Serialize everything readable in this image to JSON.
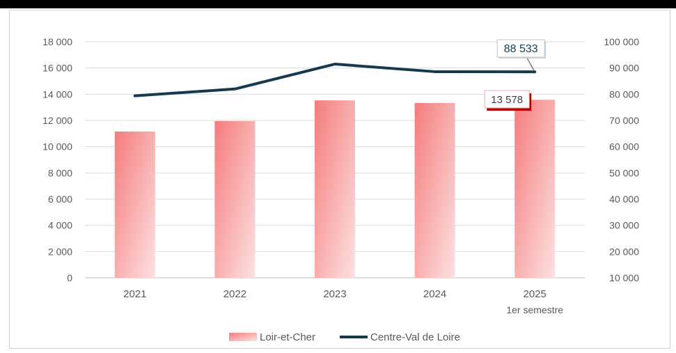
{
  "chart_data": {
    "type": "bar",
    "categories": [
      "2021",
      "2022",
      "2023",
      "2024",
      "2025"
    ],
    "category_sublabels": [
      "",
      "",
      "",
      "",
      "1er semestre"
    ],
    "series": [
      {
        "name": "Loir-et-Cher",
        "type": "bar",
        "axis": "left",
        "values": [
          11150,
          11950,
          13530,
          13330,
          13578
        ]
      },
      {
        "name": "Centre-Val de Loire",
        "type": "line",
        "axis": "right",
        "values": [
          79400,
          82000,
          91500,
          88600,
          88533
        ]
      }
    ],
    "left_axis": {
      "ticks": [
        "0",
        "2 000",
        "4 000",
        "6 000",
        "8 000",
        "10 000",
        "12 000",
        "14 000",
        "16 000",
        "18 000"
      ],
      "range": [
        0,
        18000
      ]
    },
    "right_axis": {
      "ticks": [
        "10 000",
        "20 000",
        "30 000",
        "40 000",
        "50 000",
        "60 000",
        "70 000",
        "80 000",
        "90 000",
        "100 000"
      ],
      "range": [
        10000,
        100000
      ]
    },
    "data_labels": {
      "bar_last": "13 578",
      "line_last": "88 533"
    },
    "grid": true,
    "legend_position": "bottom",
    "colors": {
      "bar_dark": "#f47c7c",
      "bar_light": "#fde1e1",
      "line": "#17394d",
      "bar_label_shadow": "#c00000",
      "grid": "#d9d9d9",
      "text": "#595959"
    }
  }
}
